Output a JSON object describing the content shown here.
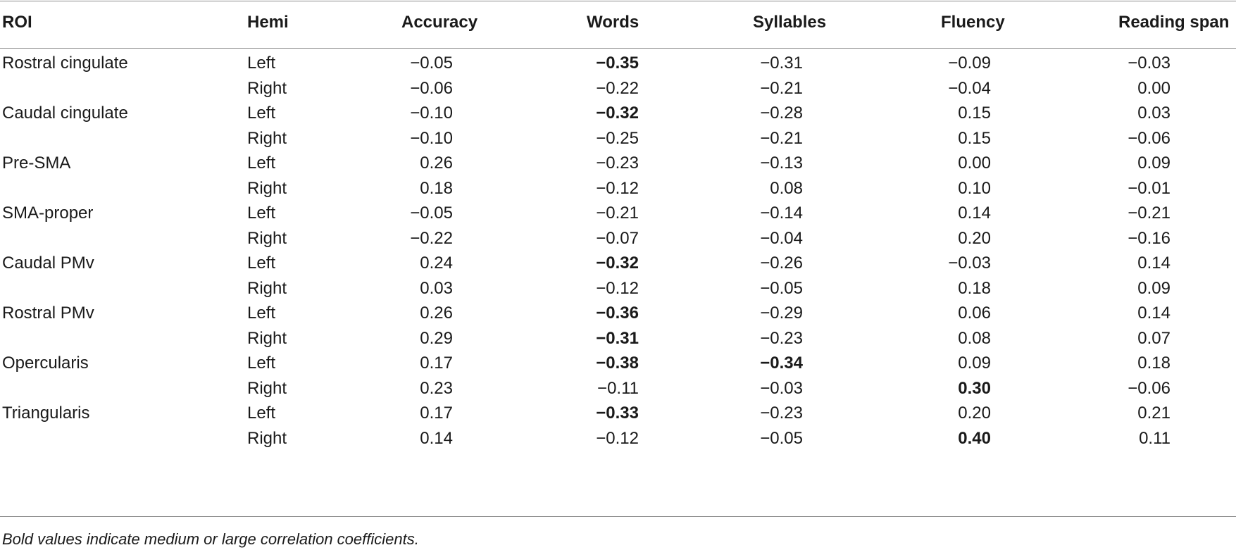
{
  "columns": [
    "ROI",
    "Hemi",
    "Accuracy",
    "Words",
    "Syllables",
    "Fluency",
    "Reading span"
  ],
  "rows": [
    {
      "roi": "Rostral cingulate",
      "hemi": "Left",
      "values": [
        "−0.05",
        "−0.35",
        "−0.31",
        "−0.09",
        "−0.03"
      ],
      "bold": [
        false,
        true,
        false,
        false,
        false
      ]
    },
    {
      "roi": "",
      "hemi": "Right",
      "values": [
        "−0.06",
        "−0.22",
        "−0.21",
        "−0.04",
        "0.00"
      ],
      "bold": [
        false,
        false,
        false,
        false,
        false
      ]
    },
    {
      "roi": "Caudal cingulate",
      "hemi": "Left",
      "values": [
        "−0.10",
        "−0.32",
        "−0.28",
        "0.15",
        "0.03"
      ],
      "bold": [
        false,
        true,
        false,
        false,
        false
      ]
    },
    {
      "roi": "",
      "hemi": "Right",
      "values": [
        "−0.10",
        "−0.25",
        "−0.21",
        "0.15",
        "−0.06"
      ],
      "bold": [
        false,
        false,
        false,
        false,
        false
      ]
    },
    {
      "roi": "Pre-SMA",
      "hemi": "Left",
      "values": [
        "0.26",
        "−0.23",
        "−0.13",
        "0.00",
        "0.09"
      ],
      "bold": [
        false,
        false,
        false,
        false,
        false
      ]
    },
    {
      "roi": "",
      "hemi": "Right",
      "values": [
        "0.18",
        "−0.12",
        "0.08",
        "0.10",
        "−0.01"
      ],
      "bold": [
        false,
        false,
        false,
        false,
        false
      ]
    },
    {
      "roi": "SMA-proper",
      "hemi": "Left",
      "values": [
        "−0.05",
        "−0.21",
        "−0.14",
        "0.14",
        "−0.21"
      ],
      "bold": [
        false,
        false,
        false,
        false,
        false
      ]
    },
    {
      "roi": "",
      "hemi": "Right",
      "values": [
        "−0.22",
        "−0.07",
        "−0.04",
        "0.20",
        "−0.16"
      ],
      "bold": [
        false,
        false,
        false,
        false,
        false
      ]
    },
    {
      "roi": "Caudal PMv",
      "hemi": "Left",
      "values": [
        "0.24",
        "−0.32",
        "−0.26",
        "−0.03",
        "0.14"
      ],
      "bold": [
        false,
        true,
        false,
        false,
        false
      ]
    },
    {
      "roi": "",
      "hemi": "Right",
      "values": [
        "0.03",
        "−0.12",
        "−0.05",
        "0.18",
        "0.09"
      ],
      "bold": [
        false,
        false,
        false,
        false,
        false
      ]
    },
    {
      "roi": "Rostral PMv",
      "hemi": "Left",
      "values": [
        "0.26",
        "−0.36",
        "−0.29",
        "0.06",
        "0.14"
      ],
      "bold": [
        false,
        true,
        false,
        false,
        false
      ]
    },
    {
      "roi": "",
      "hemi": "Right",
      "values": [
        "0.29",
        "−0.31",
        "−0.23",
        "0.08",
        "0.07"
      ],
      "bold": [
        false,
        true,
        false,
        false,
        false
      ]
    },
    {
      "roi": "Opercularis",
      "hemi": "Left",
      "values": [
        "0.17",
        "−0.38",
        "−0.34",
        "0.09",
        "0.18"
      ],
      "bold": [
        false,
        true,
        true,
        false,
        false
      ]
    },
    {
      "roi": "",
      "hemi": "Right",
      "values": [
        "0.23",
        "−0.11",
        "−0.03",
        "0.30",
        "−0.06"
      ],
      "bold": [
        false,
        false,
        false,
        true,
        false
      ]
    },
    {
      "roi": "Triangularis",
      "hemi": "Left",
      "values": [
        "0.17",
        "−0.33",
        "−0.23",
        "0.20",
        "0.21"
      ],
      "bold": [
        false,
        true,
        false,
        false,
        false
      ]
    },
    {
      "roi": "",
      "hemi": "Right",
      "values": [
        "0.14",
        "−0.12",
        "−0.05",
        "0.40",
        "0.11"
      ],
      "bold": [
        false,
        false,
        false,
        true,
        false
      ]
    }
  ],
  "footnote": "Bold values indicate medium or large correlation coefficients."
}
